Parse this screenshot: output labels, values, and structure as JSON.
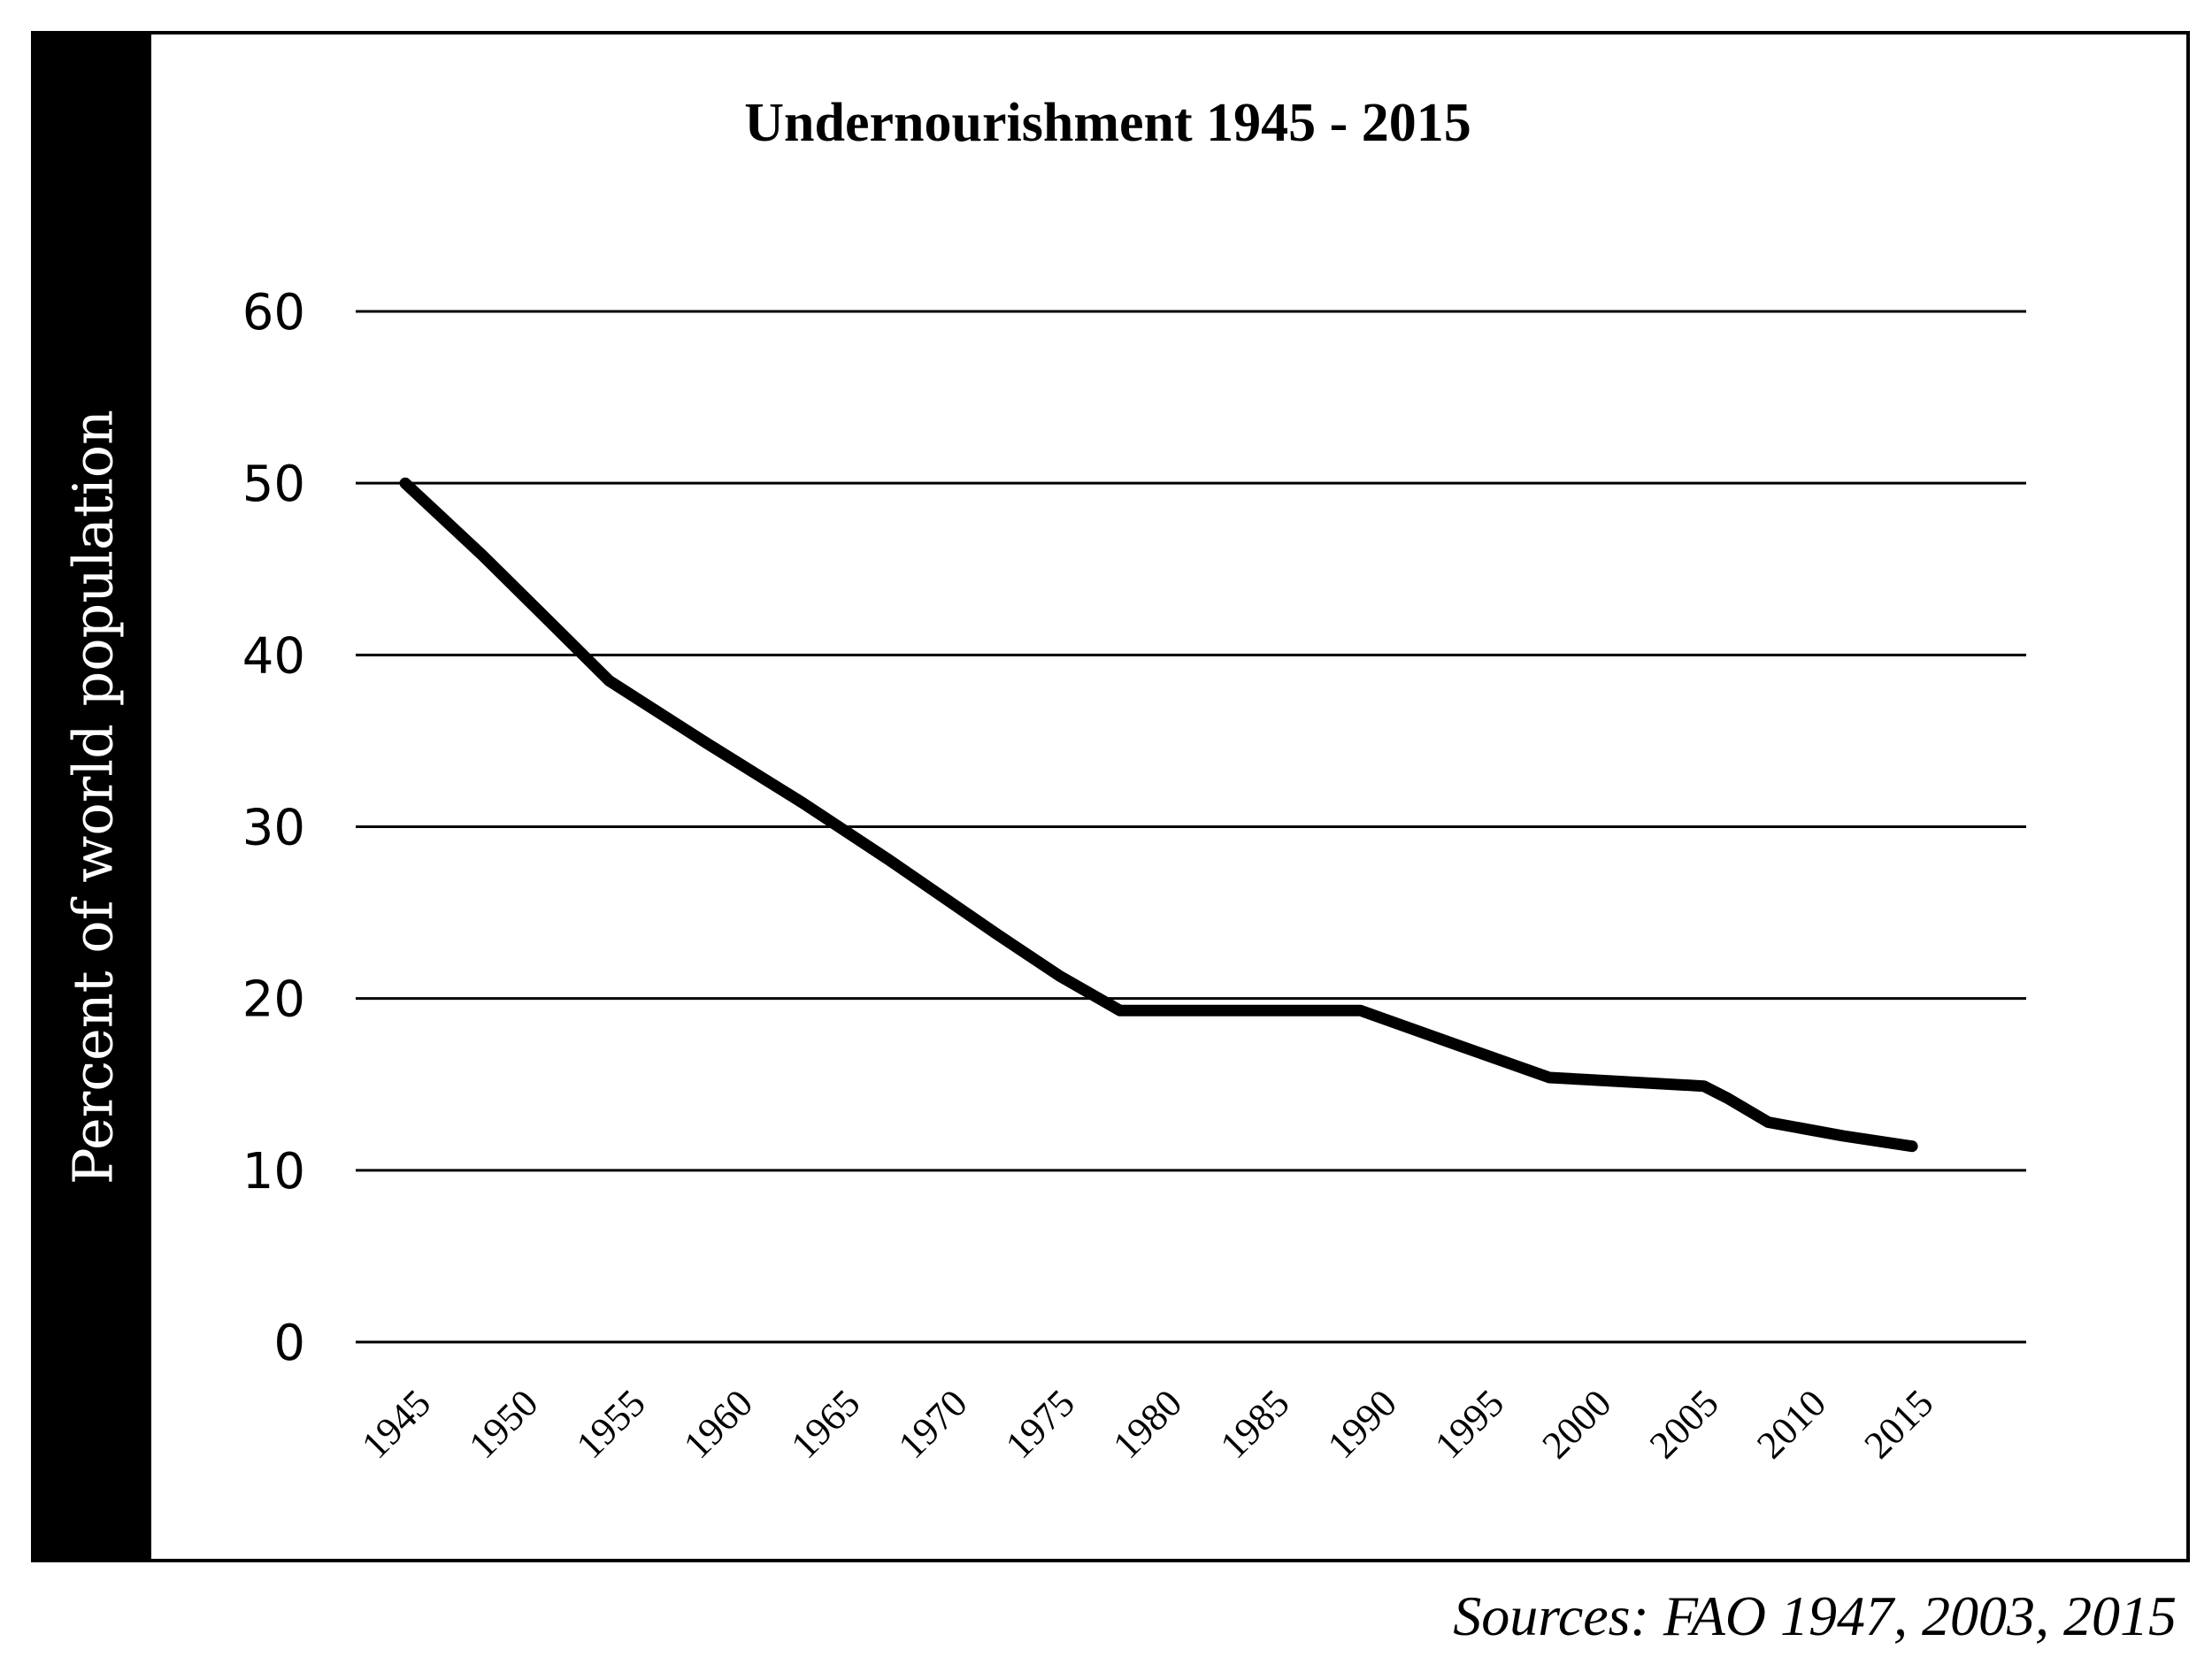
{
  "chart_data": {
    "type": "line",
    "title": "Undernourishment 1945 - 2015",
    "ylabel": "Percent of world population",
    "xlabel": "",
    "ylim": [
      0,
      60
    ],
    "yticks": [
      0,
      10,
      20,
      30,
      40,
      50,
      60
    ],
    "x_tick_labels": [
      "1945",
      "1950",
      "1955",
      "1960",
      "1965",
      "1970",
      "1975",
      "1980",
      "1985",
      "1990",
      "1995",
      "2000",
      "2005",
      "2010",
      "2015"
    ],
    "grid": true,
    "series": [
      {
        "x": [
          1945,
          1948.6,
          1952,
          1954.5,
          1959,
          1963.5,
          1967.5,
          1972.5,
          1975.5,
          1978.3,
          1989.5,
          1994,
          1998.3,
          2005.5,
          2006.6,
          2008.5,
          2012,
          2015.2
        ],
        "y": [
          50,
          45.8,
          41.6,
          38.5,
          34.9,
          31.4,
          28.1,
          23.8,
          21.3,
          19.3,
          19.3,
          17.3,
          15.4,
          14.9,
          14.2,
          12.8,
          12.0,
          11.4
        ]
      }
    ]
  },
  "colors": {
    "line": "#000000",
    "grid": "#000000",
    "band": "#000000"
  },
  "source_note": "Sources: FAO 1947, 2003, 2015"
}
